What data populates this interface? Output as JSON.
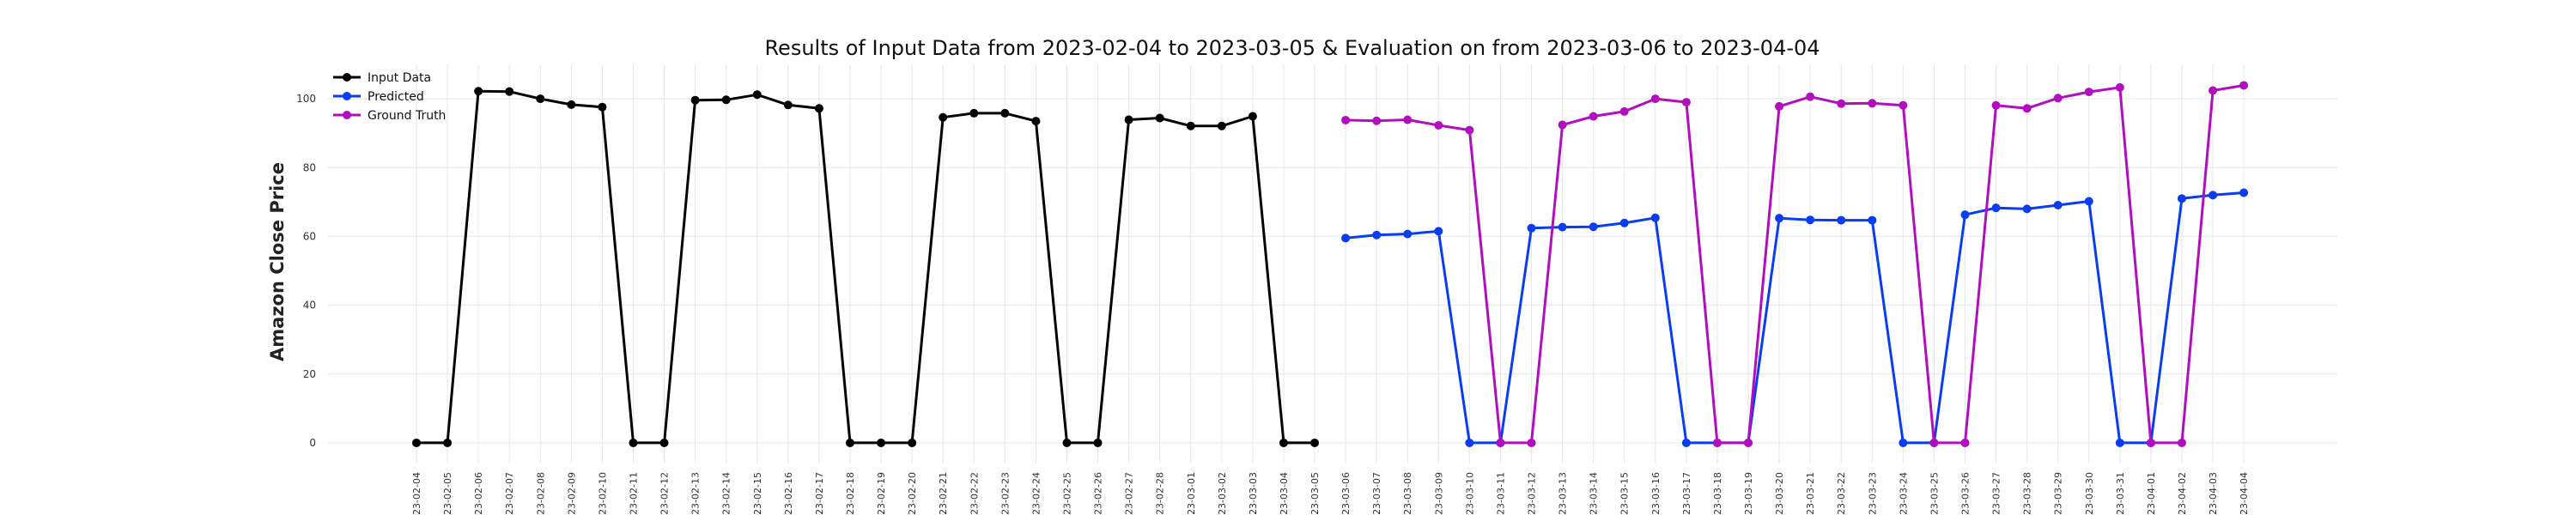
{
  "chart_data": {
    "type": "line",
    "title": "Results of Input Data from 2023-02-04 to 2023-03-05 & Evaluation on from 2023-03-06 to 2023-04-04",
    "ylabel": "Amazon Close Price",
    "xlabel": "",
    "ylim": [
      -6,
      110
    ],
    "yticks": [
      0,
      20,
      40,
      60,
      80,
      100
    ],
    "grid": true,
    "legend_position": "top-left",
    "dates": [
      "2023-02-04",
      "2023-02-05",
      "2023-02-06",
      "2023-02-07",
      "2023-02-08",
      "2023-02-09",
      "2023-02-10",
      "2023-02-11",
      "2023-02-12",
      "2023-02-13",
      "2023-02-14",
      "2023-02-15",
      "2023-02-16",
      "2023-02-17",
      "2023-02-18",
      "2023-02-19",
      "2023-02-20",
      "2023-02-21",
      "2023-02-22",
      "2023-02-23",
      "2023-02-24",
      "2023-02-25",
      "2023-02-26",
      "2023-02-27",
      "2023-02-28",
      "2023-03-01",
      "2023-03-02",
      "2023-03-03",
      "2023-03-04",
      "2023-03-05",
      "2023-03-06",
      "2023-03-07",
      "2023-03-08",
      "2023-03-09",
      "2023-03-10",
      "2023-03-11",
      "2023-03-12",
      "2023-03-13",
      "2023-03-14",
      "2023-03-15",
      "2023-03-16",
      "2023-03-17",
      "2023-03-18",
      "2023-03-19",
      "2023-03-20",
      "2023-03-21",
      "2023-03-22",
      "2023-03-23",
      "2023-03-24",
      "2023-03-25",
      "2023-03-26",
      "2023-03-27",
      "2023-03-28",
      "2023-03-29",
      "2023-03-30",
      "2023-03-31",
      "2023-04-01",
      "2023-04-02",
      "2023-04-03",
      "2023-04-04"
    ],
    "tick_labels": [
      "-23-02-04",
      "-23-02-05",
      "-23-02-06",
      "-23-02-07",
      "-23-02-08",
      "-23-02-09",
      "-23-02-10",
      "-23-02-11",
      "-23-02-12",
      "-23-02-13",
      "-23-02-14",
      "-23-02-15",
      "-23-02-16",
      "-23-02-17",
      "-23-02-18",
      "-23-02-19",
      "-23-02-20",
      "-23-02-21",
      "-23-02-22",
      "-23-02-23",
      "-23-02-24",
      "-23-02-25",
      "-23-02-26",
      "-23-02-27",
      "-23-02-28",
      "-23-03-01",
      "-23-03-02",
      "-23-03-03",
      "-23-03-04",
      "-23-03-05",
      "-23-03-06",
      "-23-03-07",
      "-23-03-08",
      "-23-03-09",
      "-23-03-10",
      "-23-03-11",
      "-23-03-12",
      "-23-03-13",
      "-23-03-14",
      "-23-03-15",
      "-23-03-16",
      "-23-03-17",
      "-23-03-18",
      "-23-03-19",
      "-23-03-20",
      "-23-03-21",
      "-23-03-22",
      "-23-03-23",
      "-23-03-24",
      "-23-03-25",
      "-23-03-26",
      "-23-03-27",
      "-23-03-28",
      "-23-03-29",
      "-23-03-30",
      "-23-03-31",
      "-23-04-01",
      "-23-04-02",
      "-23-04-03",
      "-23-04-04"
    ],
    "series": [
      {
        "name": "Input Data",
        "color": "#000000",
        "x": [
          "2023-02-04",
          "2023-02-05",
          "2023-02-06",
          "2023-02-07",
          "2023-02-08",
          "2023-02-09",
          "2023-02-10",
          "2023-02-11",
          "2023-02-12",
          "2023-02-13",
          "2023-02-14",
          "2023-02-15",
          "2023-02-16",
          "2023-02-17",
          "2023-02-18",
          "2023-02-19",
          "2023-02-20",
          "2023-02-21",
          "2023-02-22",
          "2023-02-23",
          "2023-02-24",
          "2023-02-25",
          "2023-02-26",
          "2023-02-27",
          "2023-02-28",
          "2023-03-01",
          "2023-03-02",
          "2023-03-03",
          "2023-03-04",
          "2023-03-05"
        ],
        "values": [
          0,
          0,
          102.2,
          102.1,
          100.0,
          98.3,
          97.6,
          0,
          0,
          99.6,
          99.7,
          101.2,
          98.2,
          97.2,
          0,
          0,
          0,
          94.6,
          95.8,
          95.8,
          93.5,
          0,
          0,
          93.9,
          94.4,
          92.1,
          92.1,
          94.9,
          0,
          0
        ]
      },
      {
        "name": "Predicted",
        "color": "#0a3cf0",
        "x": [
          "2023-03-06",
          "2023-03-07",
          "2023-03-08",
          "2023-03-09",
          "2023-03-10",
          "2023-03-11",
          "2023-03-12",
          "2023-03-13",
          "2023-03-14",
          "2023-03-15",
          "2023-03-16",
          "2023-03-17",
          "2023-03-18",
          "2023-03-19",
          "2023-03-20",
          "2023-03-21",
          "2023-03-22",
          "2023-03-23",
          "2023-03-24",
          "2023-03-25",
          "2023-03-26",
          "2023-03-27",
          "2023-03-28",
          "2023-03-29",
          "2023-03-30",
          "2023-03-31",
          "2023-04-01",
          "2023-04-02",
          "2023-04-03",
          "2023-04-04"
        ],
        "values": [
          59.5,
          60.4,
          60.7,
          61.5,
          0,
          0,
          62.4,
          62.7,
          62.8,
          63.9,
          65.4,
          0,
          0,
          0,
          65.3,
          64.8,
          64.7,
          64.7,
          0,
          0,
          66.3,
          68.3,
          68.0,
          69.1,
          70.2,
          0,
          0,
          71.0,
          72.0,
          72.7
        ]
      },
      {
        "name": "Ground Truth",
        "color": "#b10fbe",
        "x": [
          "2023-03-06",
          "2023-03-07",
          "2023-03-08",
          "2023-03-09",
          "2023-03-10",
          "2023-03-11",
          "2023-03-12",
          "2023-03-13",
          "2023-03-14",
          "2023-03-15",
          "2023-03-16",
          "2023-03-17",
          "2023-03-18",
          "2023-03-19",
          "2023-03-20",
          "2023-03-21",
          "2023-03-22",
          "2023-03-23",
          "2023-03-24",
          "2023-03-25",
          "2023-03-26",
          "2023-03-27",
          "2023-03-28",
          "2023-03-29",
          "2023-03-30",
          "2023-03-31",
          "2023-04-01",
          "2023-04-02",
          "2023-04-03",
          "2023-04-04"
        ],
        "values": [
          93.8,
          93.6,
          93.9,
          92.3,
          90.9,
          0,
          0,
          92.4,
          94.9,
          96.3,
          100.0,
          99.0,
          0,
          0,
          97.8,
          100.6,
          98.6,
          98.7,
          98.1,
          0,
          0,
          98.1,
          97.2,
          100.2,
          102.0,
          103.3,
          0,
          0,
          102.4,
          103.9
        ]
      }
    ]
  }
}
